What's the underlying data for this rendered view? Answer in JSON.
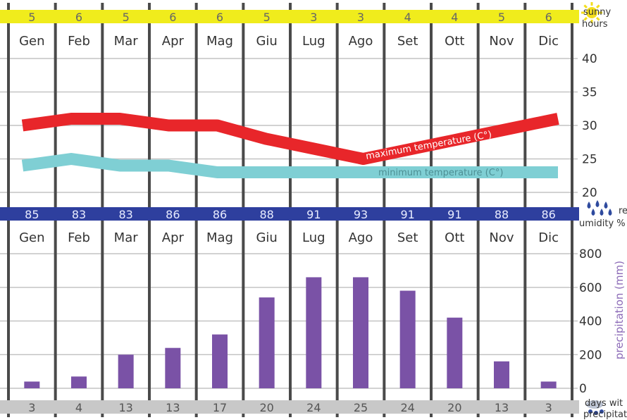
{
  "months": [
    "Gen",
    "Feb",
    "Mar",
    "Apr",
    "Mag",
    "Giu",
    "Lug",
    "Ago",
    "Set",
    "Ott",
    "Nov",
    "Dic"
  ],
  "sunny_hours": {
    "label_line1": "sunny",
    "label_line2": "hours",
    "values": [
      "5",
      "6",
      "5",
      "6",
      "6",
      "5",
      "3",
      "3",
      "4",
      "4",
      "5",
      "6"
    ],
    "band_color": "#f0ec1c",
    "icon": "sun-icon"
  },
  "humidity": {
    "label_line1": "re",
    "label_line2": "umidity %",
    "values": [
      "85",
      "83",
      "83",
      "86",
      "86",
      "88",
      "91",
      "93",
      "91",
      "91",
      "88",
      "86"
    ],
    "band_color": "#2e3f9e",
    "icon": "raindrops-icon"
  },
  "rain_days": {
    "label_line1": "days wit",
    "label_line2": "precipitati",
    "values": [
      "3",
      "4",
      "13",
      "13",
      "17",
      "20",
      "24",
      "25",
      "24",
      "20",
      "13",
      "3"
    ],
    "band_color": "#c8c8c8",
    "icon": "rain-cloud-icon"
  },
  "chart_data": [
    {
      "type": "line",
      "categories": [
        "Gen",
        "Feb",
        "Mar",
        "Apr",
        "Mag",
        "Giu",
        "Lug",
        "Ago",
        "Set",
        "Ott",
        "Nov",
        "Dic"
      ],
      "ylim": [
        20,
        40
      ],
      "yticks": [
        "20",
        "25",
        "30",
        "35",
        "40"
      ],
      "series": [
        {
          "name": "maximum temperature (C°)",
          "color": "#e8262a",
          "values": [
            30,
            31,
            31,
            30,
            30,
            28,
            26.5,
            25,
            26.5,
            28,
            29.5,
            31
          ]
        },
        {
          "name": "minimum temperature (C°)",
          "color": "#7fcfd4",
          "values": [
            24,
            25,
            24,
            24,
            23,
            23,
            23,
            23,
            23,
            23,
            23,
            23
          ]
        }
      ]
    },
    {
      "type": "bar",
      "categories": [
        "Gen",
        "Feb",
        "Mar",
        "Apr",
        "Mag",
        "Giu",
        "Lug",
        "Ago",
        "Set",
        "Ott",
        "Nov",
        "Dic"
      ],
      "values": [
        40,
        70,
        200,
        240,
        320,
        540,
        660,
        660,
        580,
        420,
        160,
        40
      ],
      "ylabel": "precipitation (mm)",
      "ylim": [
        0,
        800
      ],
      "yticks": [
        "0",
        "200",
        "400",
        "600",
        "800"
      ],
      "color": "#7a52a6"
    }
  ]
}
